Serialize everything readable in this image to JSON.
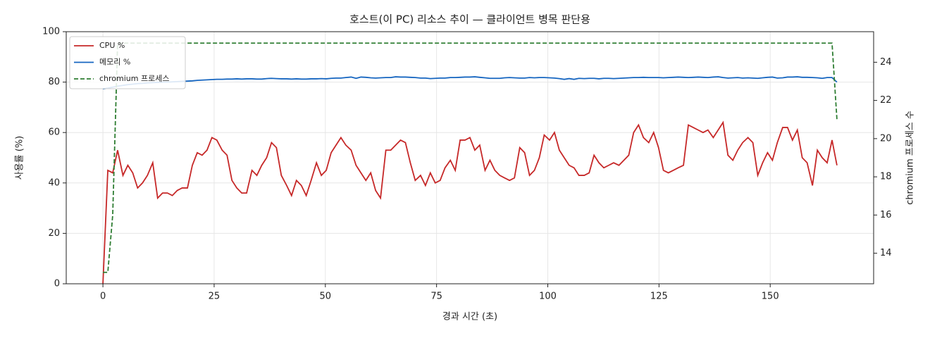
{
  "chart_data": {
    "type": "line",
    "title": "호스트(이 PC) 리소스 추이 — 클라이언트 병목 판단용",
    "xlabel": "경과 시간 (초)",
    "ylabel": "사용률 (%)",
    "y2label": "chromium 프로세스 수",
    "x": [
      0,
      1.1,
      2.2,
      3.3,
      4.5,
      5.6,
      6.7,
      7.8,
      8.9,
      10.0,
      11.2,
      12.3,
      13.4,
      14.5,
      15.6,
      16.7,
      17.8,
      19.0,
      20.1,
      21.2,
      22.3,
      23.4,
      24.5,
      25.6,
      26.8,
      27.9,
      29.0,
      30.1,
      31.2,
      32.3,
      33.5,
      34.6,
      35.7,
      36.8,
      37.9,
      39.0,
      40.1,
      41.3,
      42.4,
      43.5,
      44.6,
      45.7,
      46.8,
      48.0,
      49.1,
      50.2,
      51.3,
      52.4,
      53.5,
      54.6,
      55.8,
      56.9,
      58.0,
      59.1,
      60.2,
      61.3,
      62.4,
      63.6,
      64.7,
      65.8,
      66.9,
      68.0,
      69.1,
      70.2,
      71.4,
      72.5,
      73.6,
      74.7,
      75.8,
      76.9,
      78.1,
      79.2,
      80.3,
      81.4,
      82.5,
      83.6,
      84.7,
      85.9,
      87.0,
      88.1,
      89.2,
      90.3,
      91.4,
      92.5,
      93.7,
      94.8,
      95.9,
      97.0,
      98.1,
      99.2,
      100.4,
      101.5,
      102.6,
      103.7,
      104.8,
      105.9,
      107.0,
      108.2,
      109.3,
      110.4,
      111.5,
      112.6,
      113.7,
      114.8,
      116.0,
      117.1,
      118.2,
      119.3,
      120.4,
      121.5,
      122.7,
      123.8,
      124.9,
      126.0,
      127.1,
      128.2,
      129.3,
      130.5,
      131.6,
      132.7,
      133.8,
      134.9,
      136.0,
      137.2,
      138.3,
      139.4,
      140.5,
      141.6,
      142.7,
      143.8,
      145.0,
      146.1,
      147.2,
      148.3,
      149.4,
      150.5,
      151.6,
      152.8,
      153.9,
      155.0,
      156.1,
      157.2,
      158.3,
      159.5,
      160.6,
      161.7,
      162.8,
      163.9,
      165.0
    ],
    "series": [
      {
        "name": "CPU %",
        "color": "#c62828",
        "linestyle": "solid",
        "axis": "y",
        "values": [
          0,
          45,
          44,
          53,
          43,
          47,
          44,
          38,
          40,
          43,
          48,
          34,
          36,
          36,
          35,
          37,
          38,
          38,
          47,
          52,
          51,
          53,
          58,
          57,
          53,
          51,
          41,
          38,
          36,
          36,
          45,
          43,
          47,
          50,
          56,
          54,
          43,
          39,
          35,
          41,
          39,
          35,
          41,
          48,
          43,
          45,
          52,
          55,
          58,
          55,
          53,
          47,
          44,
          41,
          44,
          37,
          34,
          53,
          53,
          55,
          57,
          56,
          48,
          41,
          43,
          39,
          44,
          40,
          41,
          46,
          49,
          45,
          57,
          57,
          58,
          53,
          55,
          45,
          49,
          45,
          43,
          42,
          41,
          42,
          54,
          52,
          43,
          45,
          50,
          59,
          57,
          60,
          53,
          50,
          47,
          46,
          43,
          43,
          44,
          51,
          48,
          46,
          47,
          48,
          47,
          49,
          51,
          60,
          63,
          58,
          56,
          60,
          54,
          45,
          44,
          45,
          46,
          47,
          63,
          62,
          61,
          60,
          61,
          58,
          61,
          64,
          51,
          49,
          53,
          56,
          58,
          56,
          43,
          48,
          52,
          49,
          56,
          62,
          62,
          57,
          61,
          50,
          48,
          39,
          53,
          50,
          48,
          57,
          47
        ]
      },
      {
        "name": "메모리 %",
        "color": "#1565c0",
        "linestyle": "solid",
        "axis": "y",
        "values": [
          77.3,
          77.6,
          78.0,
          78.4,
          78.7,
          79.0,
          79.2,
          79.4,
          79.5,
          79.7,
          79.8,
          79.9,
          80.0,
          80.0,
          80.1,
          80.2,
          80.3,
          80.4,
          80.5,
          80.7,
          80.8,
          80.9,
          81.0,
          81.1,
          81.1,
          81.2,
          81.2,
          81.3,
          81.2,
          81.3,
          81.3,
          81.2,
          81.2,
          81.4,
          81.5,
          81.4,
          81.3,
          81.3,
          81.2,
          81.3,
          81.2,
          81.2,
          81.3,
          81.3,
          81.4,
          81.3,
          81.5,
          81.6,
          81.6,
          81.8,
          82.0,
          81.5,
          82.0,
          81.9,
          81.7,
          81.6,
          81.7,
          81.8,
          81.8,
          82.1,
          82.0,
          82.0,
          81.9,
          81.8,
          81.6,
          81.6,
          81.4,
          81.5,
          81.6,
          81.6,
          81.8,
          81.8,
          81.9,
          82.0,
          82.0,
          82.1,
          81.9,
          81.7,
          81.5,
          81.5,
          81.5,
          81.7,
          81.8,
          81.7,
          81.6,
          81.6,
          81.8,
          81.7,
          81.8,
          81.8,
          81.7,
          81.6,
          81.4,
          81.1,
          81.4,
          81.1,
          81.5,
          81.4,
          81.5,
          81.5,
          81.3,
          81.5,
          81.5,
          81.4,
          81.5,
          81.6,
          81.7,
          81.8,
          81.8,
          81.9,
          81.8,
          81.8,
          81.8,
          81.7,
          81.8,
          81.9,
          82.0,
          81.9,
          81.8,
          81.9,
          82.0,
          81.9,
          81.8,
          82.0,
          82.1,
          81.8,
          81.6,
          81.7,
          81.8,
          81.6,
          81.7,
          81.6,
          81.5,
          81.7,
          81.9,
          82.0,
          81.6,
          81.7,
          82.0,
          82.0,
          82.1,
          81.9,
          81.9,
          81.8,
          81.7,
          81.5,
          81.8,
          81.8,
          80.0
        ]
      },
      {
        "name": "chromium 프로세스",
        "color": "#2e7d32",
        "linestyle": "dashed",
        "axis": "y2",
        "values": [
          13,
          13,
          16,
          25,
          25,
          25,
          25,
          25,
          25,
          25,
          25,
          25,
          25,
          25,
          25,
          25,
          25,
          25,
          25,
          25,
          25,
          25,
          25,
          25,
          25,
          25,
          25,
          25,
          25,
          25,
          25,
          25,
          25,
          25,
          25,
          25,
          25,
          25,
          25,
          25,
          25,
          25,
          25,
          25,
          25,
          25,
          25,
          25,
          25,
          25,
          25,
          25,
          25,
          25,
          25,
          25,
          25,
          25,
          25,
          25,
          25,
          25,
          25,
          25,
          25,
          25,
          25,
          25,
          25,
          25,
          25,
          25,
          25,
          25,
          25,
          25,
          25,
          25,
          25,
          25,
          25,
          25,
          25,
          25,
          25,
          25,
          25,
          25,
          25,
          25,
          25,
          25,
          25,
          25,
          25,
          25,
          25,
          25,
          25,
          25,
          25,
          25,
          25,
          25,
          25,
          25,
          25,
          25,
          25,
          25,
          25,
          25,
          25,
          25,
          25,
          25,
          25,
          25,
          25,
          25,
          25,
          25,
          25,
          25,
          25,
          25,
          25,
          25,
          25,
          25,
          25,
          25,
          25,
          25,
          25,
          25,
          25,
          25,
          25,
          25,
          25,
          25,
          25,
          25,
          25,
          25,
          25,
          25,
          21
        ]
      }
    ],
    "xlim": [
      -8.25,
      173.25
    ],
    "xticks": [
      0,
      25,
      50,
      75,
      100,
      125,
      150
    ],
    "ylim": [
      0,
      100
    ],
    "yticks": [
      0,
      20,
      40,
      60,
      80,
      100
    ],
    "y2lim": [
      12.4,
      25.6
    ],
    "y2ticks": [
      14,
      16,
      18,
      20,
      22,
      24
    ],
    "grid": true,
    "legend": "upper left"
  }
}
